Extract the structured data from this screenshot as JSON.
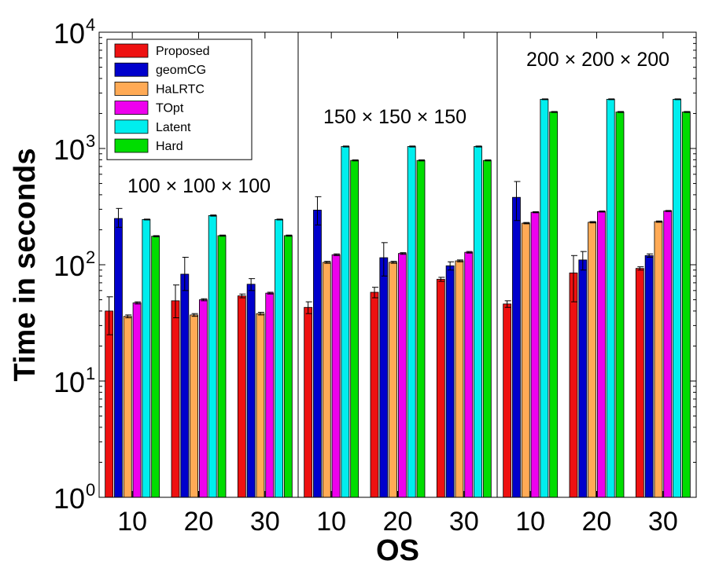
{
  "chart_data": {
    "type": "bar",
    "ylabel": "Time in seconds",
    "xlabel": "OS",
    "yscale": "log",
    "ylim": [
      1,
      10000
    ],
    "grid": false,
    "legend_position": "top-left",
    "y_ticks": [
      {
        "value": 1,
        "base": "10",
        "exp": "0"
      },
      {
        "value": 10,
        "base": "10",
        "exp": "1"
      },
      {
        "value": 100,
        "base": "10",
        "exp": "2"
      },
      {
        "value": 1000,
        "base": "10",
        "exp": "3"
      },
      {
        "value": 10000,
        "base": "10",
        "exp": "4"
      }
    ],
    "categories": [
      "10",
      "20",
      "30",
      "10",
      "20",
      "30",
      "10",
      "20",
      "30"
    ],
    "group_labels": [
      "100 × 100 × 100",
      "150 × 150 × 150",
      "200 × 200 × 200"
    ],
    "series": [
      {
        "name": "Proposed",
        "color": "#ee1111",
        "values": [
          40,
          49,
          54,
          43,
          58,
          75,
          46,
          85,
          93
        ],
        "error_low": [
          25,
          35,
          52,
          38,
          52,
          72,
          43,
          48,
          90
        ],
        "error_high": [
          53,
          67,
          56,
          48,
          64,
          78,
          49,
          120,
          96
        ]
      },
      {
        "name": "geomCG",
        "color": "#0000cc",
        "values": [
          250,
          83,
          68,
          295,
          115,
          98,
          380,
          110,
          120
        ],
        "error_low": [
          210,
          60,
          60,
          220,
          80,
          90,
          240,
          90,
          116
        ],
        "error_high": [
          305,
          116,
          76,
          385,
          155,
          106,
          520,
          130,
          124
        ]
      },
      {
        "name": "HaLRTC",
        "color": "#ffaa55",
        "values": [
          36,
          37,
          38,
          105,
          105,
          108,
          228,
          232,
          235
        ],
        "error_low": [
          35,
          36,
          37,
          103,
          103,
          106,
          225,
          229,
          232
        ],
        "error_high": [
          37,
          38,
          39,
          107,
          107,
          110,
          231,
          235,
          238
        ]
      },
      {
        "name": "TOpt",
        "color": "#ee00ee",
        "values": [
          47,
          50,
          57,
          122,
          125,
          128,
          283,
          287,
          290
        ],
        "error_low": [
          46,
          49,
          56,
          120,
          123,
          126,
          280,
          284,
          287
        ],
        "error_high": [
          48,
          51,
          58,
          124,
          127,
          130,
          286,
          290,
          293
        ]
      },
      {
        "name": "Latent",
        "color": "#00eeee",
        "values": [
          245,
          265,
          245,
          1040,
          1040,
          1040,
          2650,
          2650,
          2650
        ],
        "error_low": [
          243,
          262,
          243,
          1030,
          1030,
          1030,
          2630,
          2630,
          2630
        ],
        "error_high": [
          247,
          268,
          247,
          1050,
          1050,
          1050,
          2670,
          2670,
          2670
        ]
      },
      {
        "name": "Hard",
        "color": "#00dd00",
        "values": [
          176,
          178,
          178,
          790,
          790,
          790,
          2060,
          2060,
          2060
        ],
        "error_low": [
          174,
          176,
          176,
          782,
          782,
          782,
          2040,
          2040,
          2040
        ],
        "error_high": [
          178,
          180,
          180,
          798,
          798,
          798,
          2080,
          2080,
          2080
        ]
      }
    ]
  }
}
